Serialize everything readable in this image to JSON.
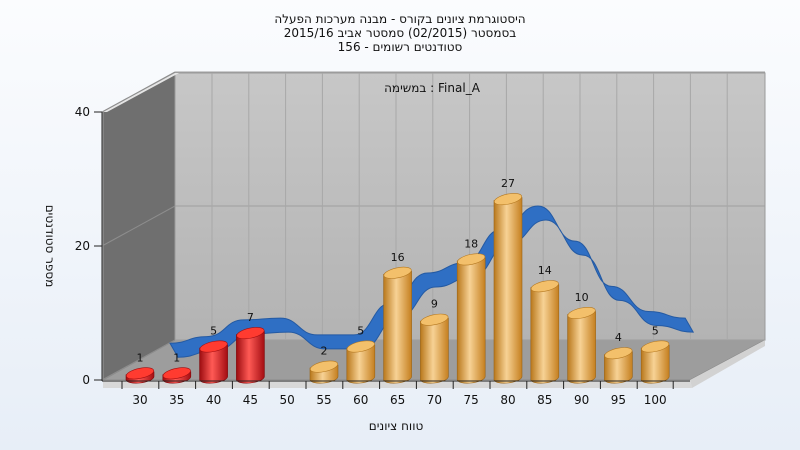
{
  "chart_data": {
    "type": "bar",
    "title_lines": [
      "היסטוגרמת ציונים בקורס - מבנה מערכות הפעלה",
      "בסמסטר  (02/2015)  סמסטר אביב 2015/16",
      "סטודנטים רשומים - 156"
    ],
    "subtitle": "במשימה : Final_A",
    "xlabel": "טווח ציונים",
    "ylabel": "מספר סטודנטים",
    "categories": [
      "30",
      "35",
      "40",
      "45",
      "50",
      "55",
      "60",
      "65",
      "70",
      "75",
      "80",
      "85",
      "90",
      "95",
      "100"
    ],
    "values": [
      1,
      1,
      5,
      7,
      0,
      2,
      5,
      16,
      9,
      18,
      27,
      14,
      10,
      4,
      5
    ],
    "value_labels": [
      "1",
      "1",
      "5",
      "7",
      "",
      "2",
      "5",
      "16",
      "9",
      "18",
      "27",
      "14",
      "10",
      "4",
      "5"
    ],
    "yticks": [
      "0",
      "20",
      "40"
    ],
    "ylim": [
      0,
      40
    ],
    "fail_threshold": 55,
    "colors": {
      "fail": "#d8121a",
      "pass": "#e9a23b",
      "curve": "#2f6fc4",
      "curve_gray": "#6c6c6c",
      "wall": "#bcbcbc",
      "side_wall": "#6f6f6f",
      "floor": "#9a9a9a"
    }
  }
}
